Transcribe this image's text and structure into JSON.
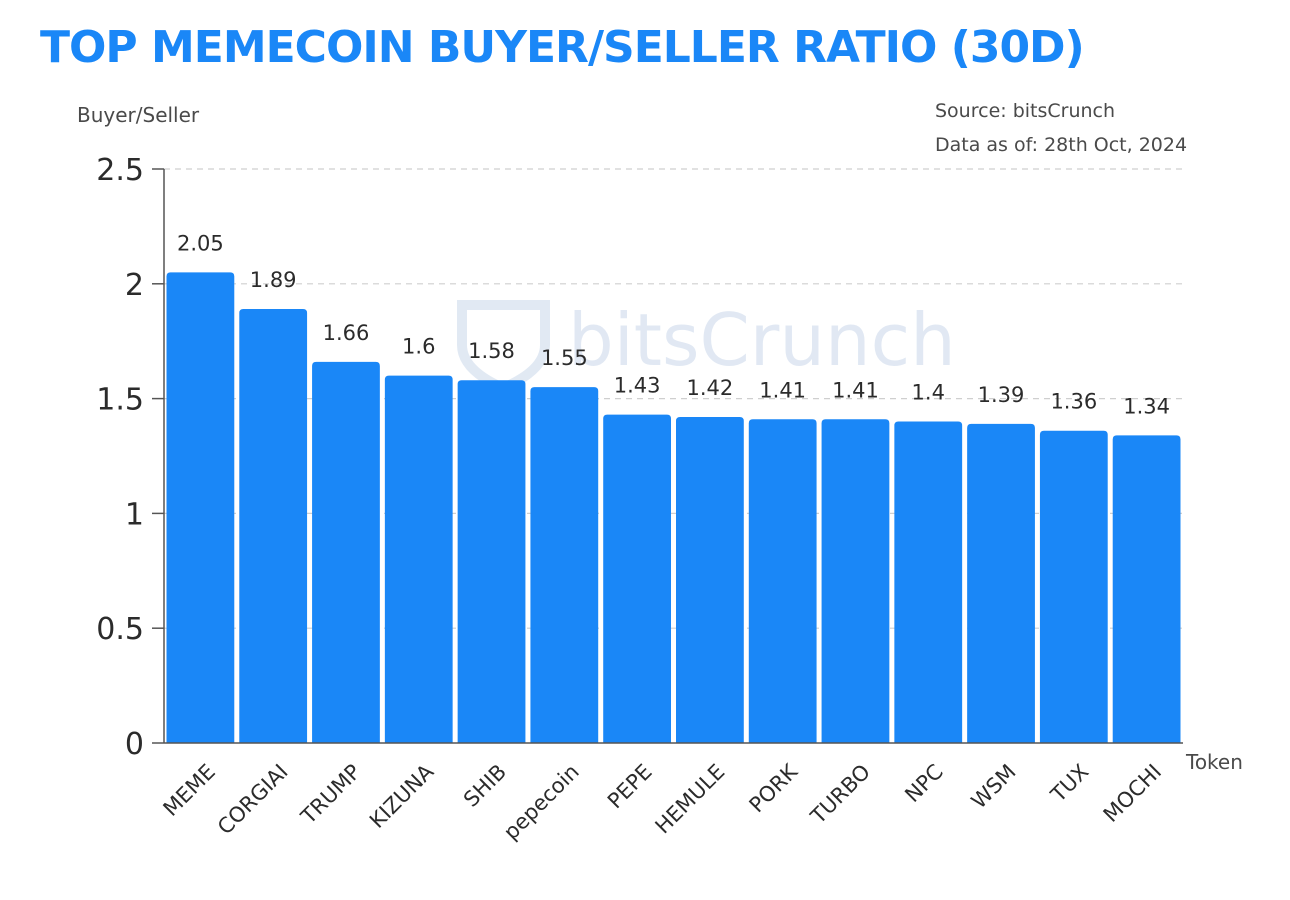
{
  "chart_data": {
    "type": "bar",
    "title": "TOP MEMECOIN BUYER/SELLER RATIO  (30D)",
    "ylabel": "Buyer/Seller",
    "xlabel": "Token",
    "source": "Source: bitsCrunch",
    "data_as_of": "Data as of: 28th Oct, 2024",
    "watermark": "bitsCrunch",
    "ylim": [
      0,
      2.5
    ],
    "yticks": [
      "0",
      "0.5",
      "1",
      "1.5",
      "2",
      "2.5"
    ],
    "grid": true,
    "bar_color": "#1a87f7",
    "categories": [
      "MEME",
      "CORGIAI",
      "TRUMP",
      "KIZUNA",
      "SHIB",
      "pepecoin",
      "PEPE",
      "HEMULE",
      "PORK",
      "TURBO",
      "NPC",
      "WSM",
      "TUX",
      "MOCHI"
    ],
    "values": [
      2.05,
      1.89,
      1.66,
      1.6,
      1.58,
      1.55,
      1.43,
      1.42,
      1.41,
      1.41,
      1.4,
      1.39,
      1.36,
      1.34
    ],
    "value_labels": [
      "2.05",
      "1.89",
      "1.66",
      "1.6",
      "1.58",
      "1.55",
      "1.43",
      "1.42",
      "1.41",
      "1.41",
      "1.4",
      "1.39",
      "1.36",
      "1.34"
    ]
  }
}
